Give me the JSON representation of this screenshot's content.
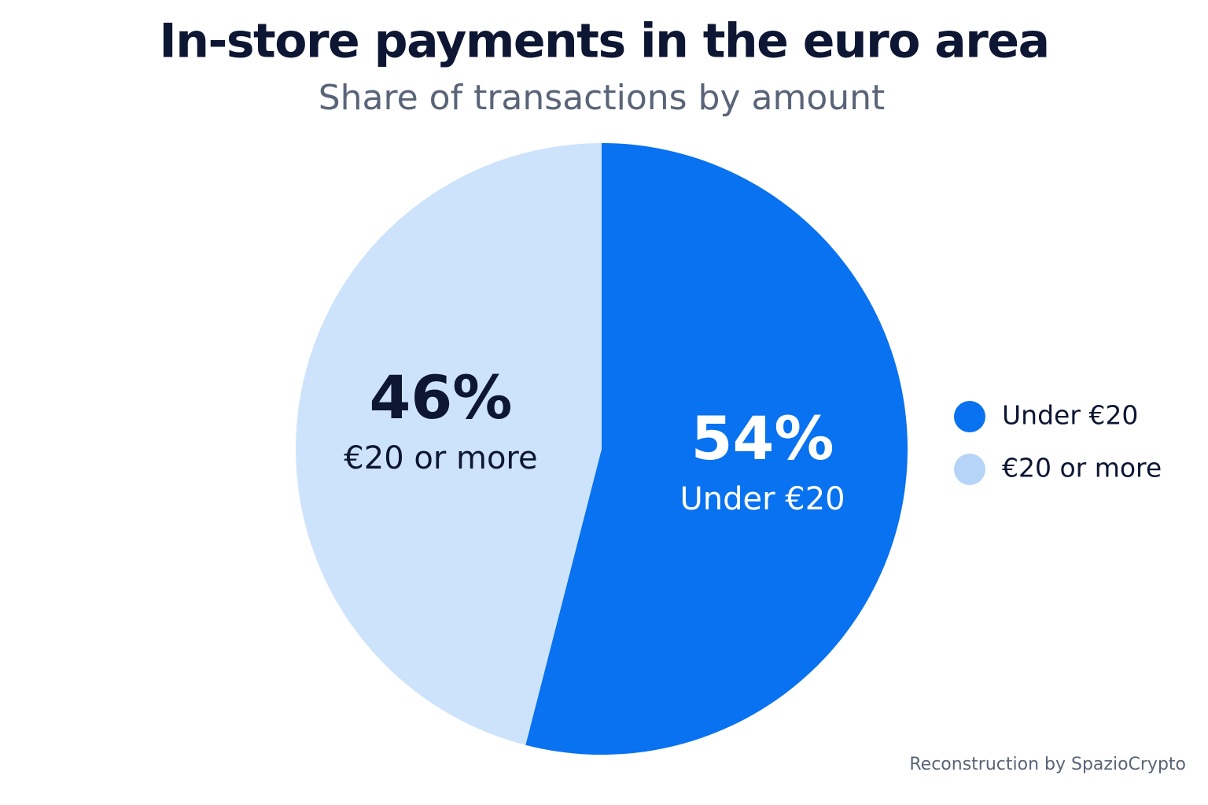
{
  "chart_data": {
    "type": "pie",
    "title": "In-store payments in the euro area",
    "subtitle": "Share of transactions by amount",
    "categories": [
      "Under €20",
      "€20 or more"
    ],
    "values": [
      54,
      46
    ],
    "value_labels": [
      "54%",
      "46%"
    ],
    "colors": [
      "#0872f0",
      "#cde3fb"
    ],
    "label_colors": [
      "#ffffff",
      "#0d1633"
    ],
    "legend_colors": [
      "#0872f0",
      "#b5d4f8"
    ],
    "legend": "right",
    "credit": "Reconstruction by SpazioCrypto"
  }
}
